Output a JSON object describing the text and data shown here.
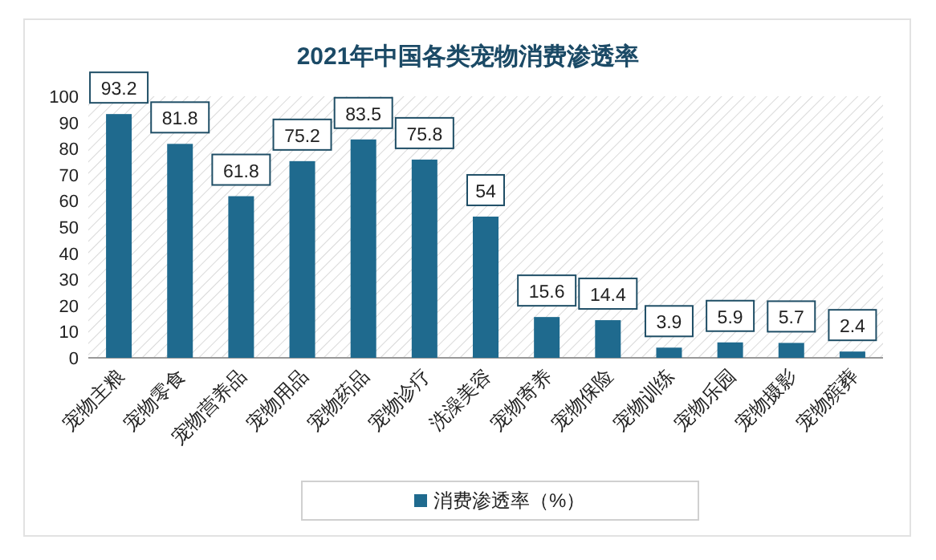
{
  "chart_data": {
    "type": "bar",
    "title": "2021年中国各类宠物消费渗透率",
    "categories": [
      "宠物主粮",
      "宠物零食",
      "宠物营养品",
      "宠物用品",
      "宠物药品",
      "宠物诊疗",
      "洗澡美容",
      "宠物寄养",
      "宠物保险",
      "宠物训练",
      "宠物乐园",
      "宠物摄影",
      "宠物殡葬"
    ],
    "series": [
      {
        "name": "消费渗透率（%）",
        "color": "#1f6a8e",
        "values": [
          93.2,
          81.8,
          61.8,
          75.2,
          83.5,
          75.8,
          54,
          15.6,
          14.4,
          3.9,
          5.9,
          5.7,
          2.4
        ]
      }
    ],
    "ylim": [
      0,
      100
    ],
    "yticks": [
      0,
      10,
      20,
      30,
      40,
      50,
      60,
      70,
      80,
      90,
      100
    ],
    "data_labels": true,
    "legend": "bottom",
    "grid": false
  }
}
